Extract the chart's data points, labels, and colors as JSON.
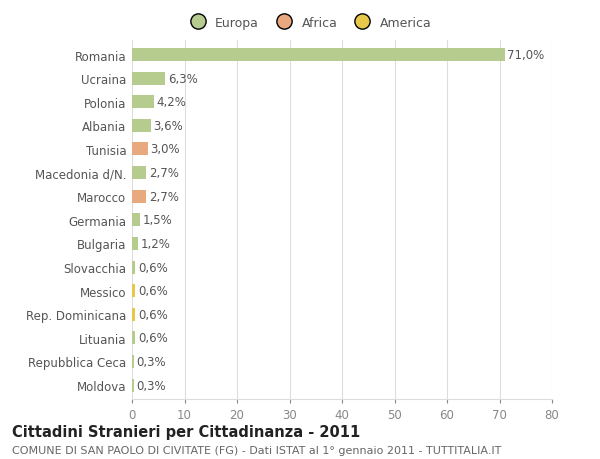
{
  "categories": [
    "Romania",
    "Ucraina",
    "Polonia",
    "Albania",
    "Tunisia",
    "Macedonia d/N.",
    "Marocco",
    "Germania",
    "Bulgaria",
    "Slovacchia",
    "Messico",
    "Rep. Dominicana",
    "Lituania",
    "Repubblica Ceca",
    "Moldova"
  ],
  "values": [
    71.0,
    6.3,
    4.2,
    3.6,
    3.0,
    2.7,
    2.7,
    1.5,
    1.2,
    0.6,
    0.6,
    0.6,
    0.6,
    0.3,
    0.3
  ],
  "labels": [
    "71,0%",
    "6,3%",
    "4,2%",
    "3,6%",
    "3,0%",
    "2,7%",
    "2,7%",
    "1,5%",
    "1,2%",
    "0,6%",
    "0,6%",
    "0,6%",
    "0,6%",
    "0,3%",
    "0,3%"
  ],
  "colors": [
    "#b5cc8e",
    "#b5cc8e",
    "#b5cc8e",
    "#b5cc8e",
    "#e8a97e",
    "#b5cc8e",
    "#e8a97e",
    "#b5cc8e",
    "#b5cc8e",
    "#b5cc8e",
    "#e8c84a",
    "#e8c84a",
    "#b5cc8e",
    "#b5cc8e",
    "#b5cc8e"
  ],
  "legend_labels": [
    "Europa",
    "Africa",
    "America"
  ],
  "legend_colors": [
    "#b5cc8e",
    "#e8a97e",
    "#e8c84a"
  ],
  "xlim": [
    0,
    80
  ],
  "xticks": [
    0,
    10,
    20,
    30,
    40,
    50,
    60,
    70,
    80
  ],
  "title": "Cittadini Stranieri per Cittadinanza - 2011",
  "subtitle": "COMUNE DI SAN PAOLO DI CIVITATE (FG) - Dati ISTAT al 1° gennaio 2011 - TUTTITALIA.IT",
  "bg_color": "#ffffff",
  "grid_color": "#dddddd",
  "bar_height": 0.55,
  "title_fontsize": 10.5,
  "subtitle_fontsize": 8,
  "label_fontsize": 8.5,
  "tick_fontsize": 8.5,
  "legend_fontsize": 9
}
